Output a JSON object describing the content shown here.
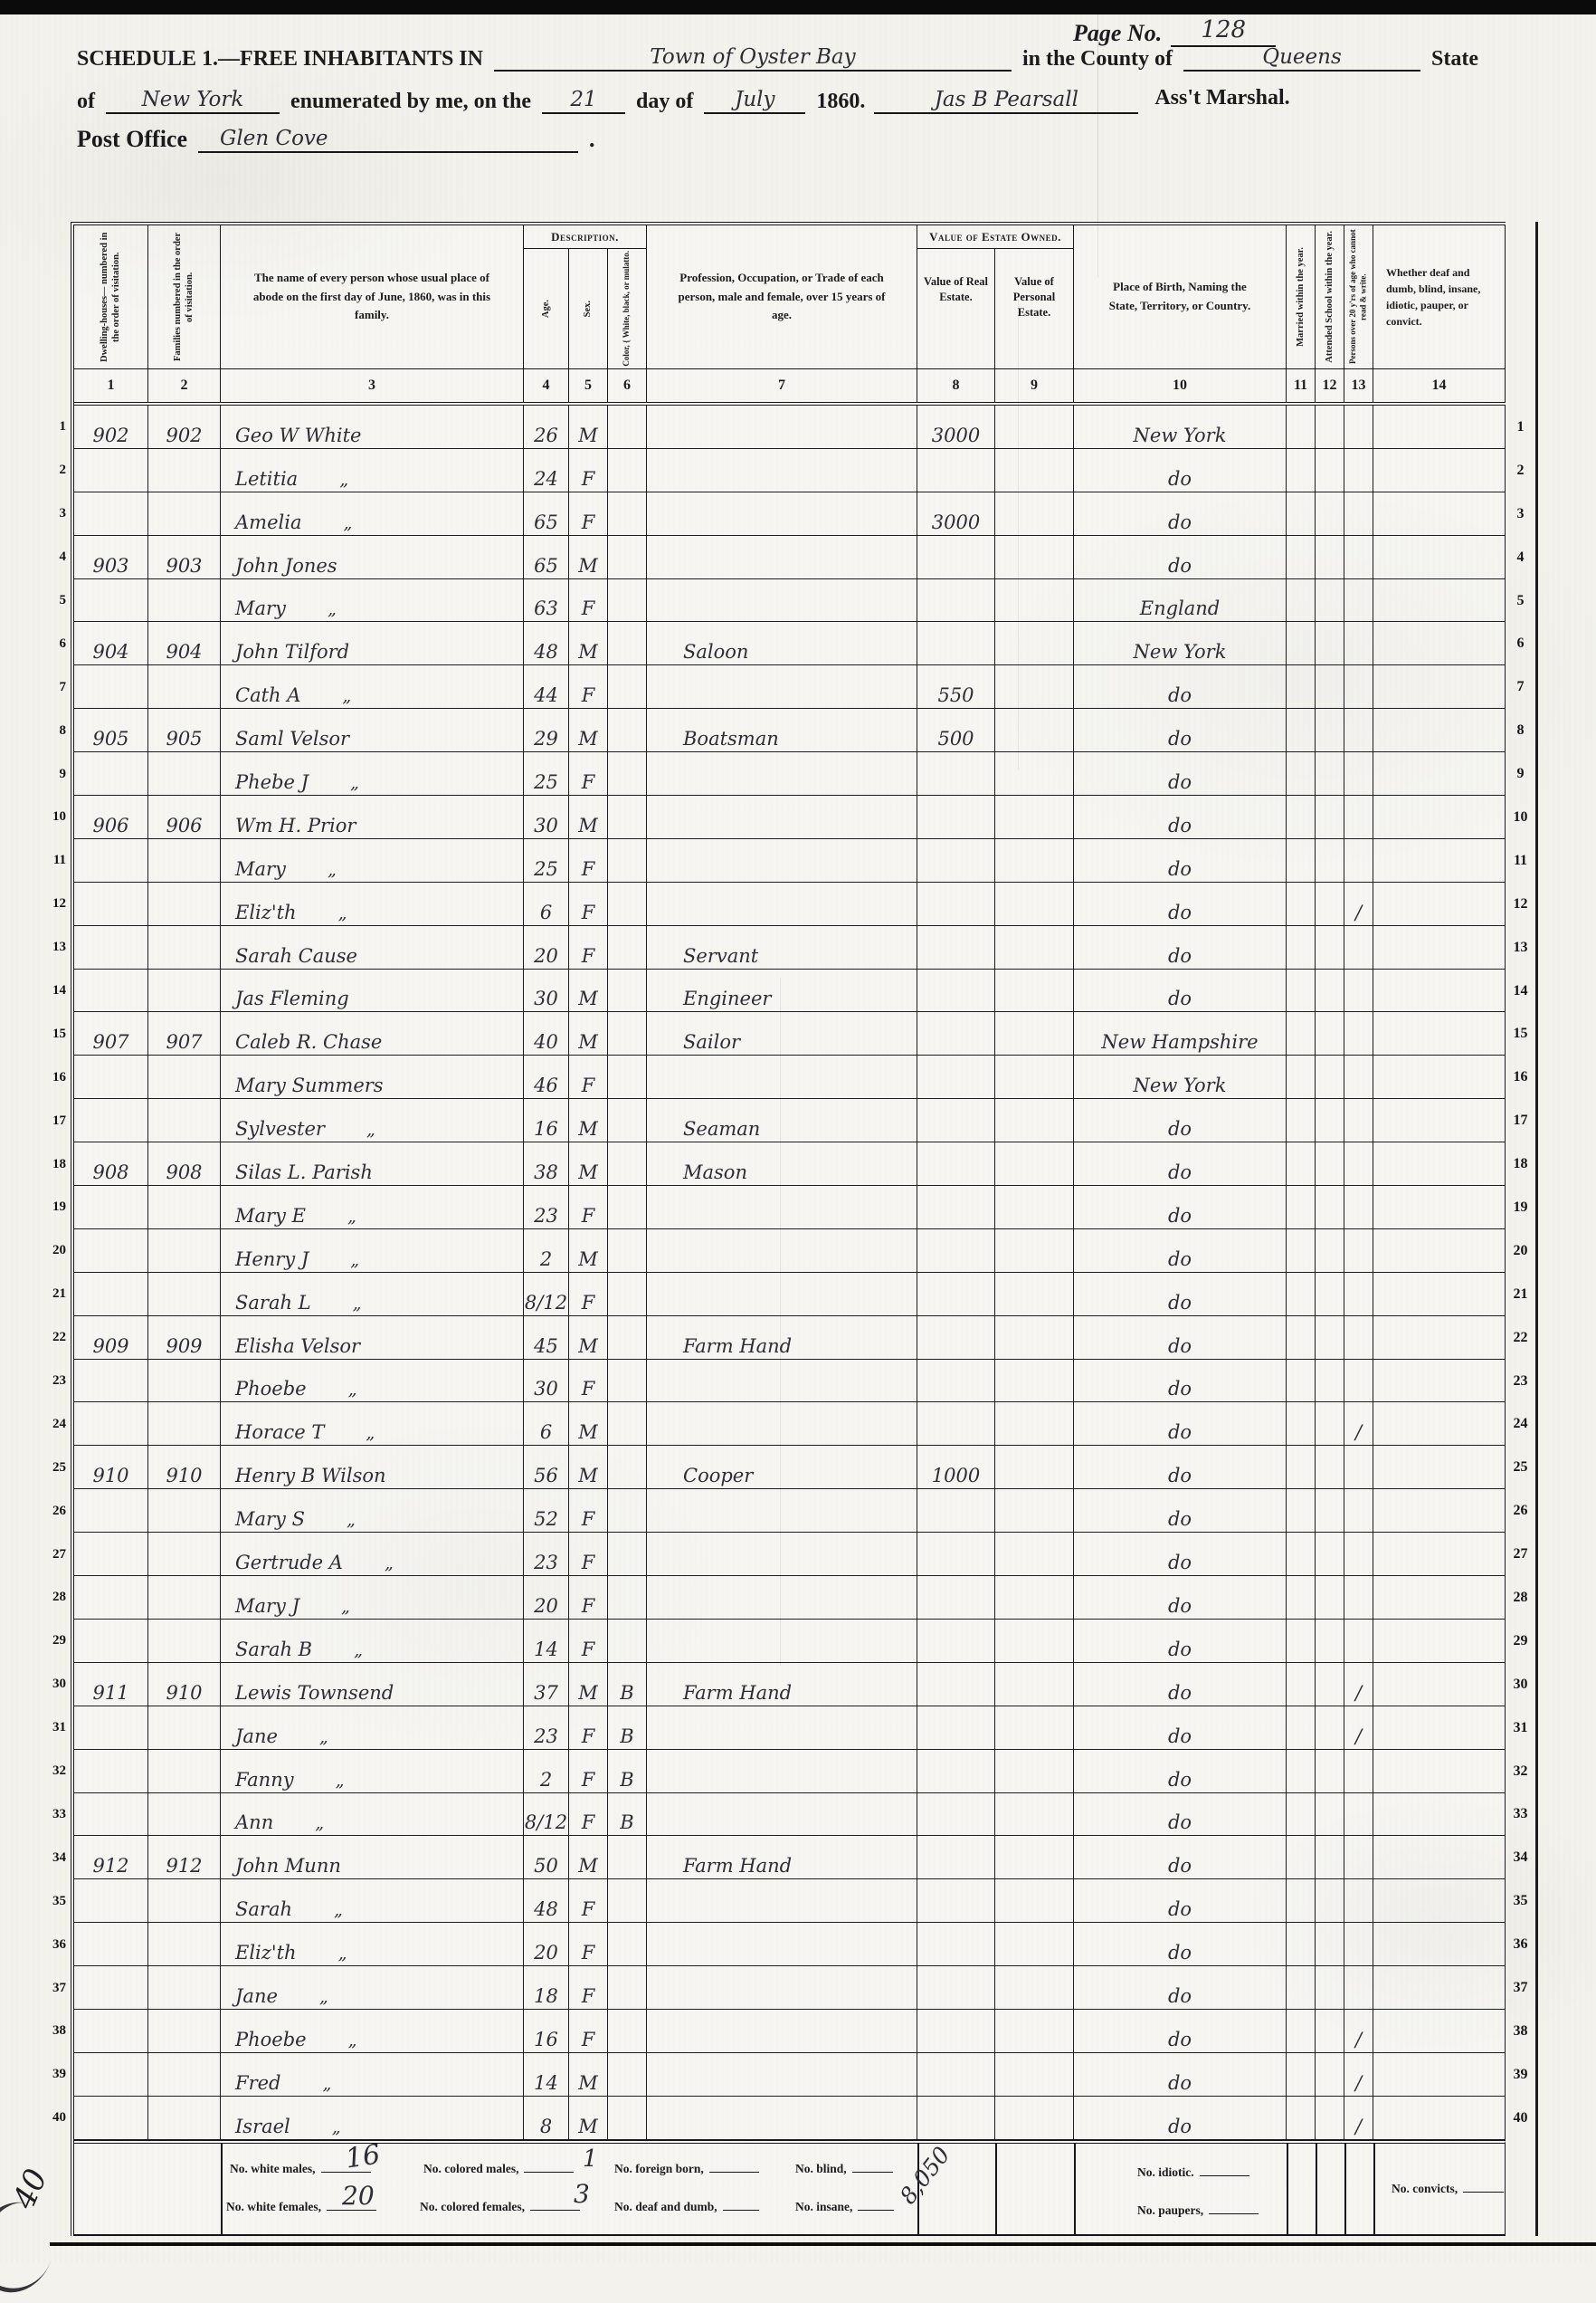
{
  "page": {
    "page_no_label": "Page No.",
    "page_no": "128",
    "schedule_title": "Schedule 1.—Free Inhabitants in",
    "location": "Town of Oyster Bay",
    "county_label": "in the County of",
    "county": "Queens",
    "state_label": "State",
    "of_label": "of",
    "state": "New York",
    "enumerated_label": "enumerated by me, on the",
    "day": "21",
    "day_of_label": "day of",
    "month": "July",
    "year": "1860.",
    "marshal_signature": "Jas B Pearsall",
    "marshal_title": "Ass't Marshal.",
    "post_office_label": "Post Office",
    "post_office": "Glen Cove",
    "post_office_period": ".",
    "margin_note": "40"
  },
  "table": {
    "ditto_mark": "„",
    "check_mark": "/",
    "headers": {
      "col1": "Dwelling-houses— numbered in the order of visitation.",
      "col2": "Families numbered in the order of visitation.",
      "col3": "The name of every person whose usual place of abode on the first day of June, 1860, was in this family.",
      "description_group": "Description.",
      "col4": "Age.",
      "col5": "Sex.",
      "col6": "Color, { White, black, or mulatto.",
      "col7": "Profession, Occupation, or Trade of each person, male and female, over 15 years of age.",
      "estate_group": "Value of Estate Owned.",
      "col8": "Value of Real Estate.",
      "col9": "Value of Personal Estate.",
      "col10": "Place of Birth, Naming the State, Territory, or Country.",
      "col11": "Married within the year.",
      "col12": "Attended School within the year.",
      "col13": "Persons over 20 y'rs of age who cannot read & write.",
      "col14": "Whether deaf and dumb, blind, insane, idiotic, pauper, or convict."
    },
    "column_numbers": [
      "1",
      "2",
      "3",
      "4",
      "5",
      "6",
      "7",
      "8",
      "9",
      "10",
      "11",
      "12",
      "13",
      "14"
    ],
    "rows": [
      {
        "dw": "902",
        "fam": "902",
        "name": "Geo W White",
        "age": "26",
        "sex": "M",
        "re": "3000",
        "birth": "New York"
      },
      {
        "name": "Letitia",
        "d": 1,
        "age": "24",
        "sex": "F",
        "birth": "do"
      },
      {
        "name": "Amelia",
        "d": 1,
        "age": "65",
        "sex": "F",
        "re": "3000",
        "birth": "do"
      },
      {
        "dw": "903",
        "fam": "903",
        "name": "John Jones",
        "age": "65",
        "sex": "M",
        "birth": "do"
      },
      {
        "name": "Mary",
        "d": 1,
        "age": "63",
        "sex": "F",
        "birth": "England"
      },
      {
        "dw": "904",
        "fam": "904",
        "name": "John Tilford",
        "age": "48",
        "sex": "M",
        "occ": "Saloon",
        "birth": "New York"
      },
      {
        "name": "Cath A",
        "d": 1,
        "age": "44",
        "sex": "F",
        "re": "550",
        "birth": "do"
      },
      {
        "dw": "905",
        "fam": "905",
        "name": "Saml Velsor",
        "age": "29",
        "sex": "M",
        "occ": "Boatsman",
        "re": "500",
        "birth": "do"
      },
      {
        "name": "Phebe J",
        "d": 1,
        "age": "25",
        "sex": "F",
        "birth": "do"
      },
      {
        "dw": "906",
        "fam": "906",
        "name": "Wm H. Prior",
        "age": "30",
        "sex": "M",
        "birth": "do"
      },
      {
        "name": "Mary",
        "d": 1,
        "age": "25",
        "sex": "F",
        "birth": "do"
      },
      {
        "name": "Eliz'th",
        "d": 1,
        "age": "6",
        "sex": "F",
        "birth": "do",
        "chk": 1
      },
      {
        "name": "Sarah Cause",
        "age": "20",
        "sex": "F",
        "occ": "Servant",
        "birth": "do"
      },
      {
        "name": "Jas Fleming",
        "age": "30",
        "sex": "M",
        "occ": "Engineer",
        "birth": "do"
      },
      {
        "dw": "907",
        "fam": "907",
        "name": "Caleb R. Chase",
        "age": "40",
        "sex": "M",
        "occ": "Sailor",
        "birth": "New Hampshire"
      },
      {
        "name": "Mary Summers",
        "age": "46",
        "sex": "F",
        "birth": "New York"
      },
      {
        "name": "Sylvester",
        "d": 1,
        "age": "16",
        "sex": "M",
        "occ": "Seaman",
        "birth": "do"
      },
      {
        "dw": "908",
        "fam": "908",
        "name": "Silas L. Parish",
        "age": "38",
        "sex": "M",
        "occ": "Mason",
        "birth": "do"
      },
      {
        "name": "Mary E",
        "d": 1,
        "age": "23",
        "sex": "F",
        "birth": "do"
      },
      {
        "name": "Henry J",
        "d": 1,
        "age": "2",
        "sex": "M",
        "birth": "do"
      },
      {
        "name": "Sarah L",
        "d": 1,
        "age": "8/12",
        "sex": "F",
        "birth": "do"
      },
      {
        "dw": "909",
        "fam": "909",
        "name": "Elisha Velsor",
        "age": "45",
        "sex": "M",
        "occ": "Farm Hand",
        "birth": "do"
      },
      {
        "name": "Phoebe",
        "d": 1,
        "age": "30",
        "sex": "F",
        "birth": "do"
      },
      {
        "name": "Horace T",
        "d": 1,
        "age": "6",
        "sex": "M",
        "birth": "do",
        "chk": 1
      },
      {
        "dw": "910",
        "fam": "910",
        "name": "Henry B Wilson",
        "age": "56",
        "sex": "M",
        "occ": "Cooper",
        "re": "1000",
        "birth": "do"
      },
      {
        "name": "Mary S",
        "d": 1,
        "age": "52",
        "sex": "F",
        "birth": "do"
      },
      {
        "name": "Gertrude A",
        "d": 1,
        "age": "23",
        "sex": "F",
        "birth": "do"
      },
      {
        "name": "Mary J",
        "d": 1,
        "age": "20",
        "sex": "F",
        "birth": "do"
      },
      {
        "name": "Sarah B",
        "d": 1,
        "age": "14",
        "sex": "F",
        "birth": "do"
      },
      {
        "dw": "911",
        "fam": "910",
        "name": "Lewis Townsend",
        "age": "37",
        "sex": "M",
        "col": "B",
        "occ": "Farm Hand",
        "birth": "do",
        "chk": 1
      },
      {
        "name": "Jane",
        "d": 1,
        "age": "23",
        "sex": "F",
        "col": "B",
        "birth": "do",
        "chk": 1
      },
      {
        "name": "Fanny",
        "d": 1,
        "age": "2",
        "sex": "F",
        "col": "B",
        "birth": "do"
      },
      {
        "name": "Ann",
        "d": 1,
        "age": "8/12",
        "sex": "F",
        "col": "B",
        "birth": "do"
      },
      {
        "dw": "912",
        "fam": "912",
        "name": "John Munn",
        "age": "50",
        "sex": "M",
        "occ": "Farm Hand",
        "birth": "do"
      },
      {
        "name": "Sarah",
        "d": 1,
        "age": "48",
        "sex": "F",
        "birth": "do"
      },
      {
        "name": "Eliz'th",
        "d": 1,
        "age": "20",
        "sex": "F",
        "birth": "do"
      },
      {
        "name": "Jane",
        "d": 1,
        "age": "18",
        "sex": "F",
        "birth": "do"
      },
      {
        "name": "Phoebe",
        "d": 1,
        "age": "16",
        "sex": "F",
        "birth": "do",
        "chk": 1
      },
      {
        "name": "Fred",
        "d": 1,
        "age": "14",
        "sex": "M",
        "birth": "do",
        "chk": 1
      },
      {
        "name": "Israel",
        "d": 1,
        "age": "8",
        "sex": "M",
        "birth": "do",
        "chk": 1
      }
    ]
  },
  "totals": {
    "white_males_label": "No. white males,",
    "white_males": "16",
    "colored_males_label": "No. colored males,",
    "colored_males": "1",
    "foreign_born_label": "No. foreign born,",
    "blind_label": "No. blind,",
    "white_females_label": "No. white females,",
    "white_females": "20",
    "colored_females_label": "No. colored females,",
    "colored_females": "3",
    "deaf_dumb_label": "No. deaf and dumb,",
    "insane_label": "No. insane,",
    "idiotic_label": "No. idiotic.",
    "paupers_label": "No. paupers,",
    "convicts_label": "No. convicts,",
    "real_estate_total": "8,050"
  }
}
